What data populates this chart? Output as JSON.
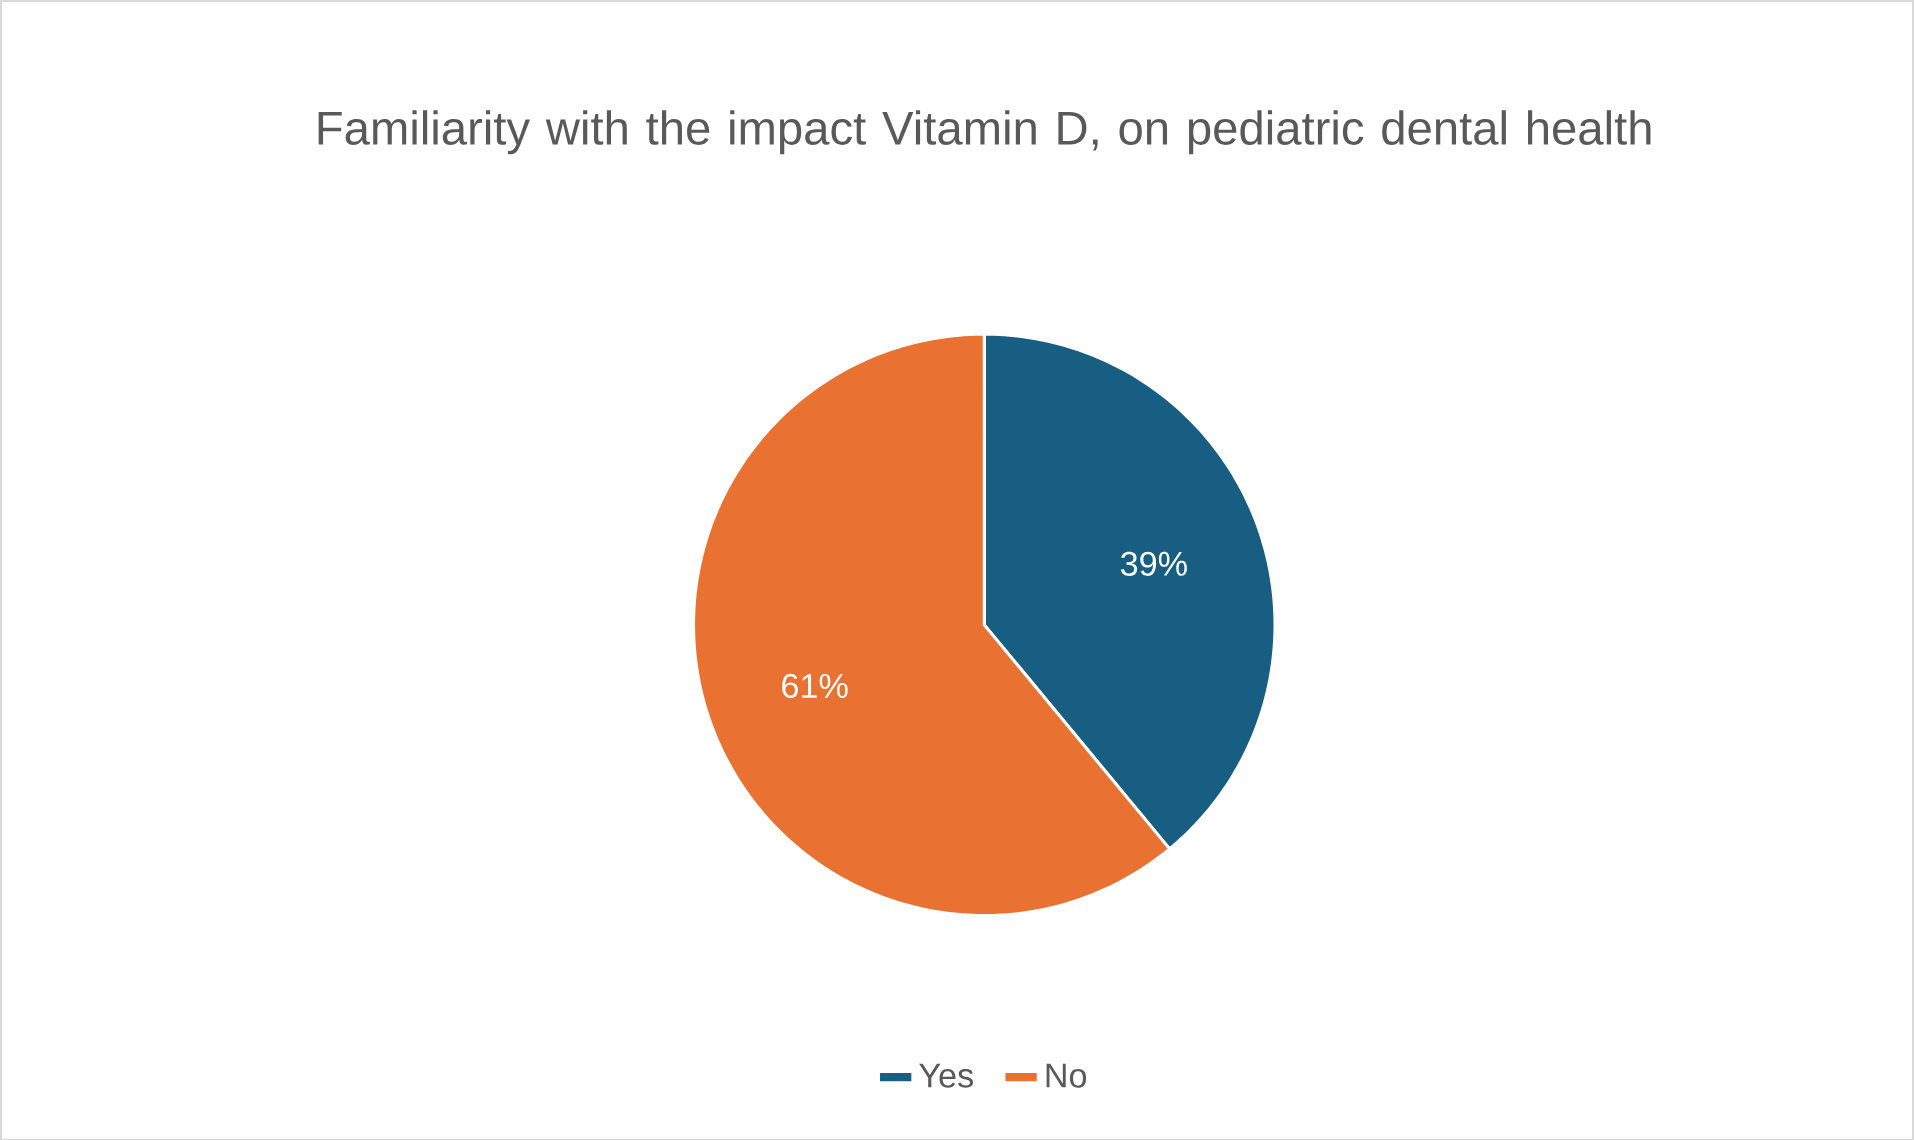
{
  "chart_data": {
    "type": "pie",
    "title": "Familiarity with the impact Vitamin D, on pediatric dental health",
    "categories": [
      "Yes",
      "No"
    ],
    "values": [
      39,
      61
    ],
    "colors": [
      "#185e82",
      "#e97233"
    ],
    "value_labels": [
      "39%",
      "61%"
    ],
    "legend": "bottom"
  }
}
